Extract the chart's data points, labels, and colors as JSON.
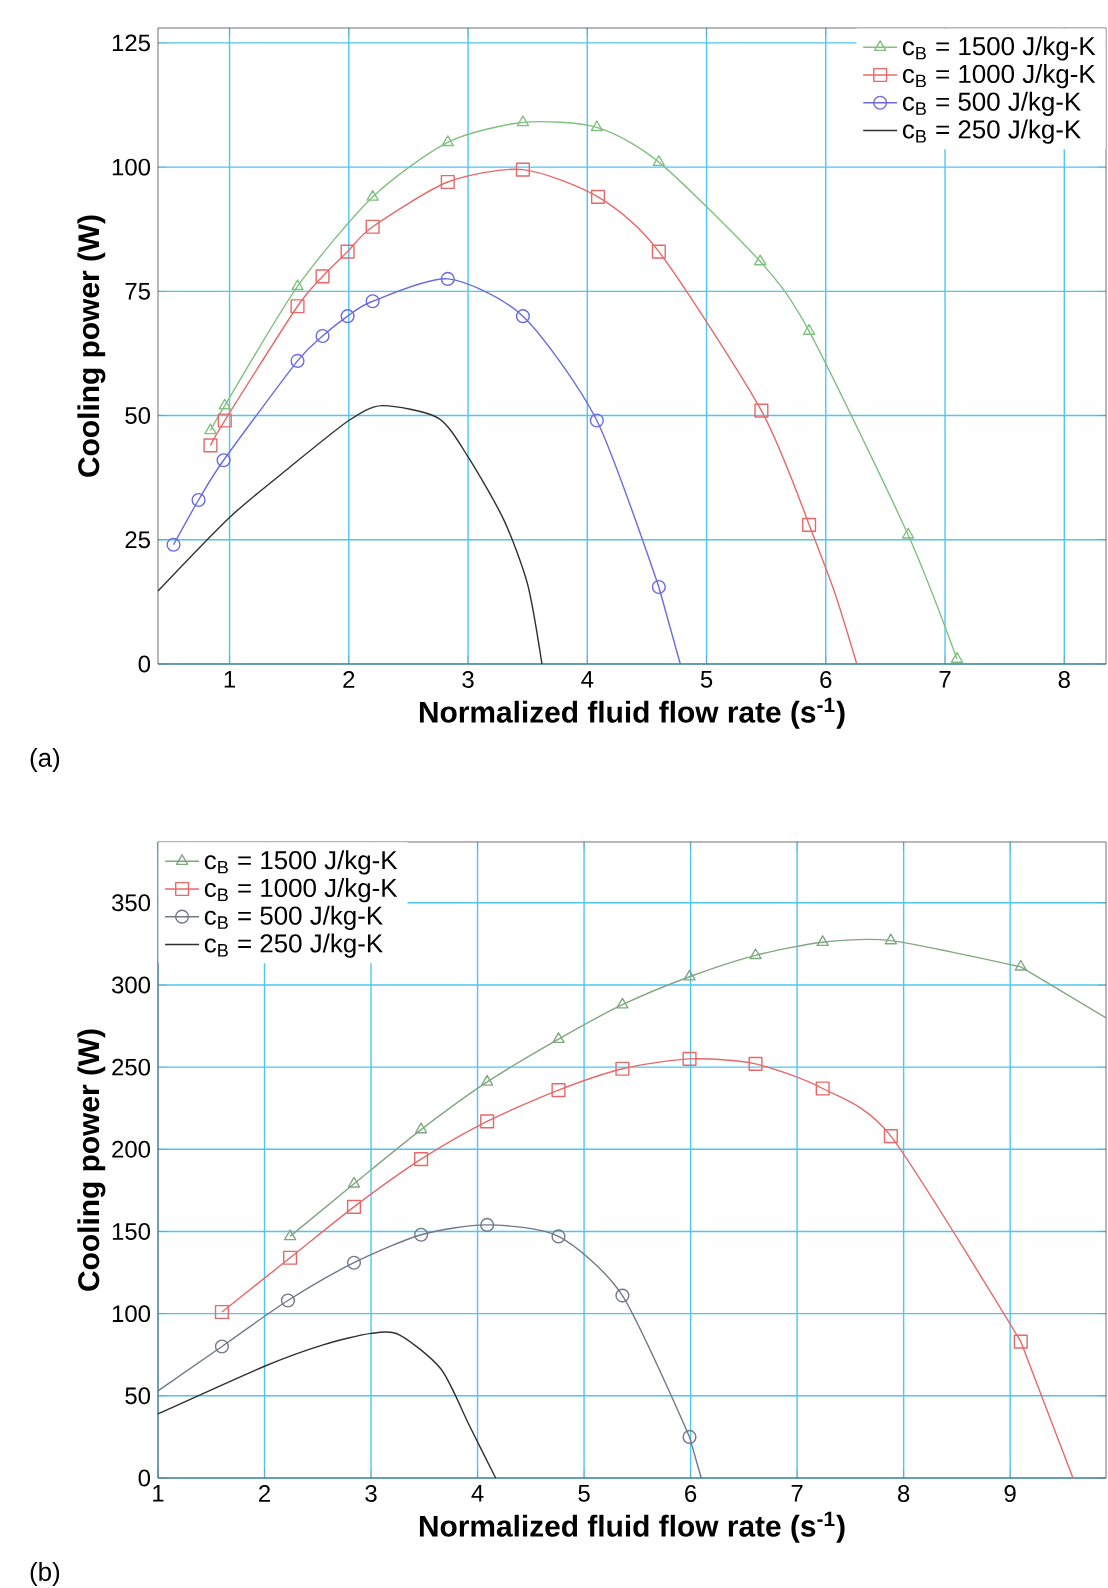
{
  "chart_data": [
    {
      "type": "line",
      "xlabel": "Normalized fluid flow rate (s$^{-1}$)",
      "ylabel": "Cooling power (W)",
      "annotations": [
        "(a)"
      ],
      "legend": "top right",
      "grid": true,
      "xlim": [
        0.4,
        8.35
      ],
      "ylim": [
        0,
        128
      ],
      "xticks": [
        1,
        2,
        3,
        4,
        5,
        6,
        7,
        8
      ],
      "yticks": [
        0,
        25,
        50,
        75,
        100,
        125
      ],
      "series": [
        {
          "name": "c$_{B}$ = 1500 J/kg-K",
          "color": "#80c080",
          "marker": "triangle",
          "x": [
            0.84,
            0.96,
            1.57,
            2.2,
            2.83,
            3.46,
            4.08,
            4.6,
            5.45,
            5.86,
            6.69,
            7.1
          ],
          "values": [
            47,
            52,
            76,
            94,
            105,
            109,
            108,
            101,
            81,
            67,
            26,
            1
          ]
        },
        {
          "name": "c$_{B}$ = 1000 J/kg-K",
          "color": "#e86868",
          "marker": "square",
          "x": [
            0.84,
            0.96,
            1.57,
            1.78,
            1.99,
            2.2,
            2.83,
            3.46,
            4.09,
            4.6,
            5.46,
            5.86
          ],
          "values": [
            44,
            49,
            72,
            78,
            83,
            88,
            97,
            99.5,
            94,
            83,
            51,
            28
          ]
        },
        {
          "name": "c$_{B}$ = 500 J/kg-K",
          "color": "#6a6ae0",
          "marker": "circle",
          "x": [
            0.53,
            0.74,
            0.95,
            1.57,
            1.78,
            1.99,
            2.2,
            2.83,
            3.46,
            4.08,
            4.6
          ],
          "values": [
            24,
            33,
            41,
            61,
            66,
            70,
            73,
            77.5,
            70,
            49,
            15.5
          ]
        },
        {
          "name": "c$_{B}$ = 250 J/kg-K",
          "color": "#303030",
          "marker": "none",
          "x": [
            0.4,
            1,
            1.5,
            2,
            2.28,
            2.75,
            3,
            3.3,
            3.5,
            3.62
          ],
          "values": [
            14.7,
            29.5,
            39.5,
            49,
            52,
            49.5,
            41.7,
            29,
            16,
            0
          ]
        },
        {
          "color": "#e86868",
          "marker": "none",
          "x": [
            5.86,
            6.08,
            6.26
          ],
          "values": [
            28,
            14,
            0
          ]
        },
        {
          "color": "#6a6ae0",
          "marker": "none",
          "x": [
            4.6,
            4.78
          ],
          "values": [
            15.5,
            0
          ]
        }
      ]
    },
    {
      "type": "line",
      "xlabel": "Normalized fluid flow rate (s$^{-1}$)",
      "ylabel": "Cooling power (W)",
      "annotations": [
        "(b)"
      ],
      "legend": "top left",
      "grid": true,
      "xlim": [
        1,
        9.9
      ],
      "ylim": [
        0,
        387
      ],
      "xticks": [
        1,
        2,
        3,
        4,
        5,
        6,
        7,
        8,
        9
      ],
      "yticks": [
        0,
        50,
        100,
        150,
        200,
        250,
        300,
        350
      ],
      "series": [
        {
          "name": "c$_{B}$ = 1500 J/kg-K",
          "color": "#80a880",
          "marker": "triangle",
          "x": [
            2.24,
            2.84,
            3.47,
            4.09,
            4.76,
            5.36,
            5.99,
            6.61,
            7.24,
            7.88,
            9.1
          ],
          "values": [
            147,
            179,
            212,
            241,
            267,
            288,
            305,
            318,
            326,
            327,
            311
          ]
        },
        {
          "name": "c$_{B}$ = 1000 J/kg-K",
          "color": "#e86868",
          "marker": "square",
          "x": [
            1.6,
            2.24,
            2.84,
            3.47,
            4.09,
            4.76,
            5.36,
            5.99,
            6.61,
            7.24,
            7.88,
            9.1
          ],
          "values": [
            101,
            134,
            165,
            194,
            217,
            236,
            249,
            255,
            252,
            237,
            208,
            83
          ]
        },
        {
          "name": "c$_{B}$ = 500 J/kg-K",
          "color": "#707888",
          "marker": "circle",
          "x": [
            1.6,
            2.22,
            2.84,
            3.47,
            4.09,
            4.76,
            5.36,
            5.99
          ],
          "values": [
            80,
            108,
            131,
            148,
            154,
            147,
            111,
            25
          ]
        },
        {
          "name": "c$_{B}$ = 250 J/kg-K",
          "color": "#303030",
          "marker": "none",
          "x": [
            1.0,
            2,
            2.55,
            3.0,
            3.27,
            3.66,
            3.93,
            4.17
          ],
          "values": [
            39,
            68,
            81,
            88,
            87,
            66,
            31,
            0
          ]
        },
        {
          "color": "#80a880",
          "marker": "none",
          "x": [
            9.1,
            9.9
          ],
          "values": [
            311,
            280
          ]
        },
        {
          "color": "#e86868",
          "marker": "none",
          "x": [
            9.1,
            9.36,
            9.59
          ],
          "values": [
            83,
            39,
            0
          ]
        },
        {
          "color": "#707888",
          "marker": "none",
          "x": [
            1.0,
            1.6
          ],
          "values": [
            53,
            80
          ]
        },
        {
          "color": "#707888",
          "marker": "none",
          "x": [
            5.99,
            6.1
          ],
          "values": [
            25,
            0
          ]
        }
      ]
    }
  ]
}
